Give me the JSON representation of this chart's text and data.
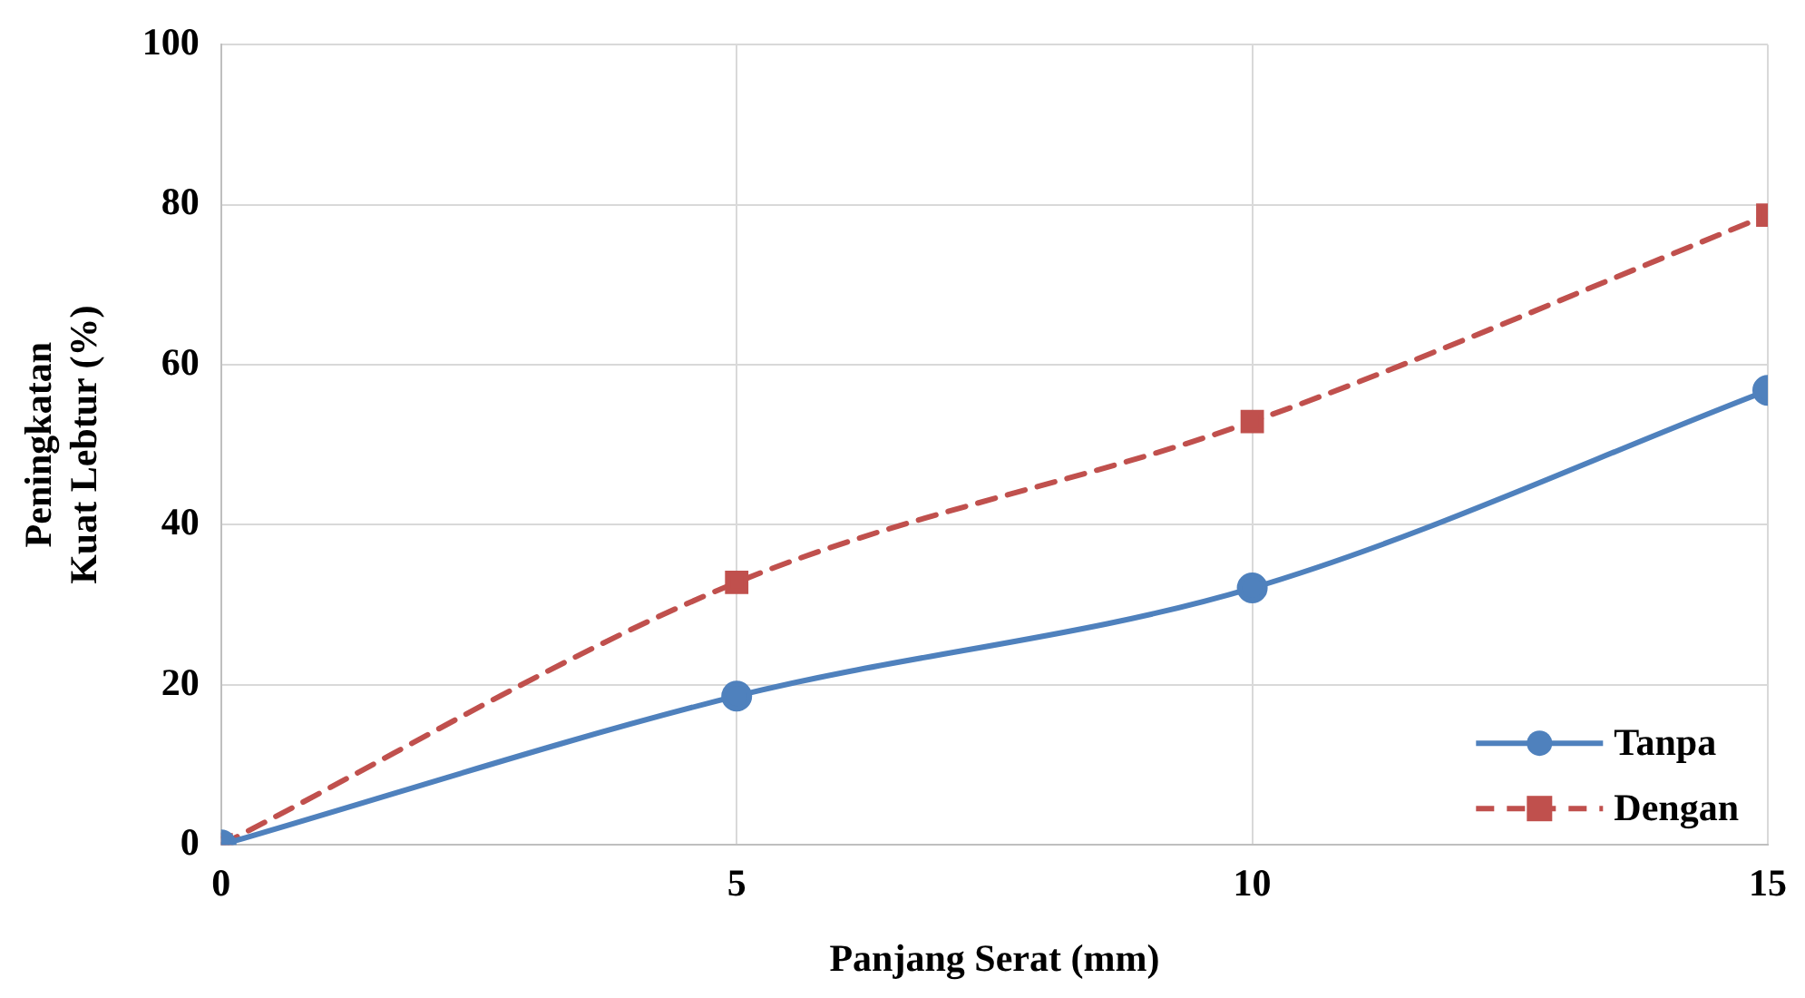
{
  "chart_data": {
    "type": "line",
    "xlabel": "Panjang Serat (mm)",
    "ylabel": "Peningkatan\nKuat Lebtur (%)",
    "x": [
      0,
      5,
      10,
      15
    ],
    "series": [
      {
        "name": "Tanpa",
        "color": "#4f81bd",
        "values": [
          0,
          18.6,
          32.1,
          56.8
        ],
        "marker": "circle",
        "line_style": "solid"
      },
      {
        "name": "Dengan",
        "color": "#c0504d",
        "values": [
          0,
          32.8,
          52.9,
          78.7
        ],
        "marker": "square",
        "line_style": "dashed"
      }
    ],
    "xlim": [
      0,
      15
    ],
    "xticks": [
      0,
      5,
      10,
      15
    ],
    "ylim": [
      0,
      100
    ],
    "yticks": [
      0,
      20,
      40,
      60,
      80,
      100
    ],
    "grid": true,
    "legend": "bottom right"
  }
}
